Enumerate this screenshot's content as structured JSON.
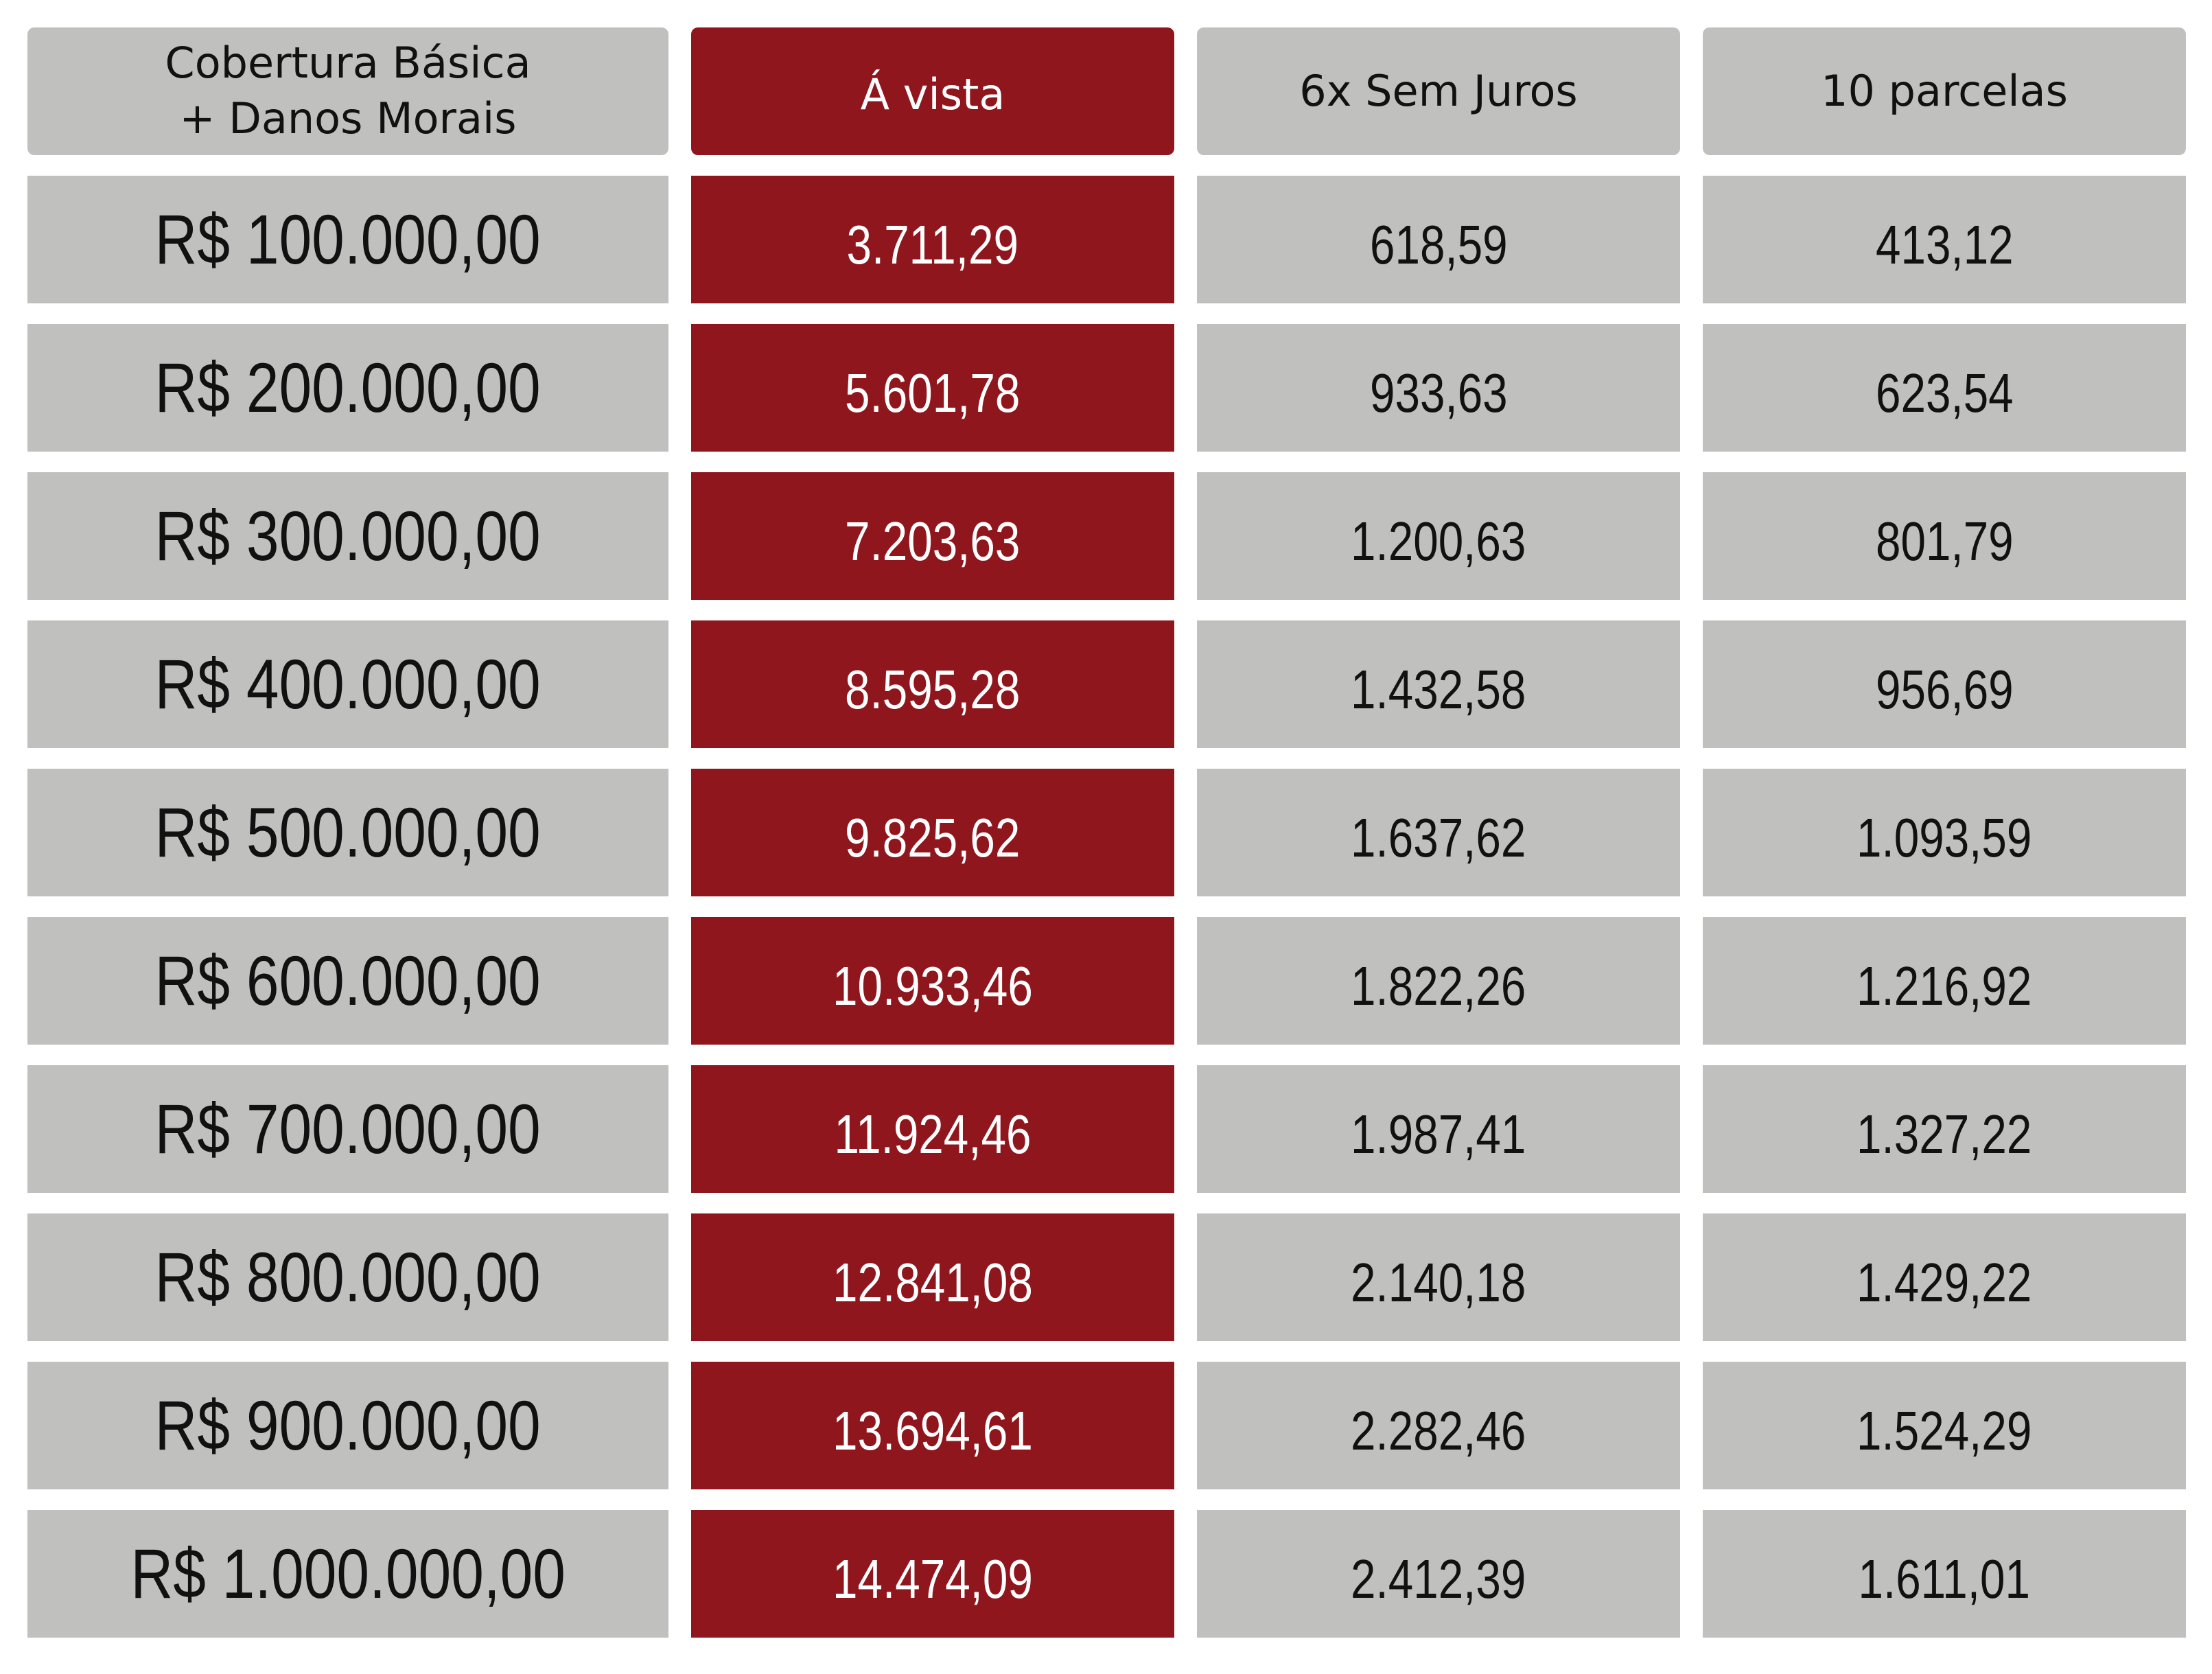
{
  "header": {
    "coverage_line1": "Cobertura Básica",
    "coverage_line2": "+ Danos Morais",
    "cash": "Á vista",
    "six_no_interest": "6x Sem Juros",
    "ten_installments": "10 parcelas"
  },
  "rows": [
    {
      "coverage": "R$ 100.000,00",
      "cash": "3.711,29",
      "six": "618,59",
      "ten": "413,12"
    },
    {
      "coverage": "R$ 200.000,00",
      "cash": "5.601,78",
      "six": "933,63",
      "ten": "623,54"
    },
    {
      "coverage": "R$ 300.000,00",
      "cash": "7.203,63",
      "six": "1.200,63",
      "ten": "801,79"
    },
    {
      "coverage": "R$ 400.000,00",
      "cash": "8.595,28",
      "six": "1.432,58",
      "ten": "956,69"
    },
    {
      "coverage": "R$ 500.000,00",
      "cash": "9.825,62",
      "six": "1.637,62",
      "ten": "1.093,59"
    },
    {
      "coverage": "R$ 600.000,00",
      "cash": "10.933,46",
      "six": "1.822,26",
      "ten": "1.216,92"
    },
    {
      "coverage": "R$ 700.000,00",
      "cash": "11.924,46",
      "six": "1.987,41",
      "ten": "1.327,22"
    },
    {
      "coverage": "R$ 800.000,00",
      "cash": "12.841,08",
      "six": "2.140,18",
      "ten": "1.429,22"
    },
    {
      "coverage": "R$ 900.000,00",
      "cash": "13.694,61",
      "six": "2.282,46",
      "ten": "1.524,29"
    },
    {
      "coverage": "R$ 1.000.000,00",
      "cash": "14.474,09",
      "six": "2.412,39",
      "ten": "1.611,01"
    }
  ],
  "colors": {
    "cell_gray": "#c0c0bf",
    "accent_red": "#8f161c",
    "text_dark": "#111111",
    "text_light": "#ffffff"
  }
}
